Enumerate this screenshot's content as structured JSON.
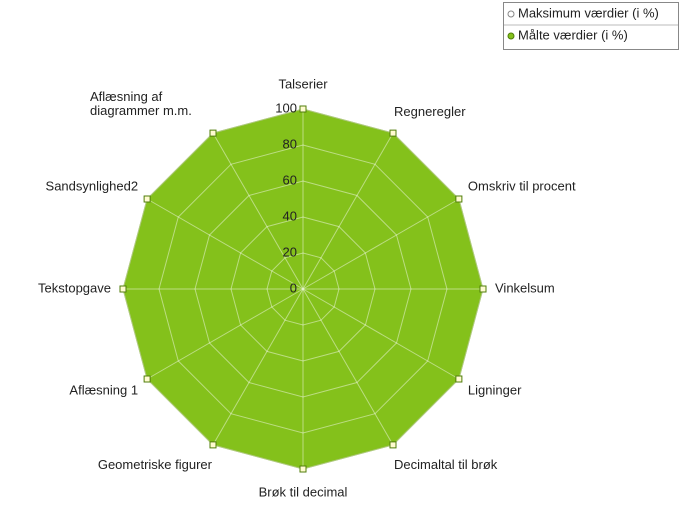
{
  "chart_data": {
    "type": "radar",
    "categories": [
      "Talserier",
      "Regneregler",
      "Omskriv til procent",
      "Vinkelsum",
      "Ligninger",
      "Decimaltal til brøk",
      "Brøk til decimal",
      "Geometriske figurer",
      "Aflæsning 1",
      "Tekstopgave",
      "Sandsynlighed2",
      "Aflæsning af diagrammer m.m."
    ],
    "series": [
      {
        "name": "Maksimum værdier (i %)",
        "color": "#ffffff",
        "values": [
          100,
          100,
          100,
          100,
          100,
          100,
          100,
          100,
          100,
          100,
          100,
          100
        ]
      },
      {
        "name": "Målte værdier (i %)",
        "color": "#84c11b",
        "values": [
          100,
          100,
          100,
          100,
          100,
          100,
          100,
          100,
          100,
          100,
          100,
          100
        ]
      }
    ],
    "ylim": [
      0,
      100
    ],
    "yticks": [
      0,
      20,
      40,
      60,
      80,
      100
    ],
    "grid": true,
    "legend": "top-right"
  }
}
